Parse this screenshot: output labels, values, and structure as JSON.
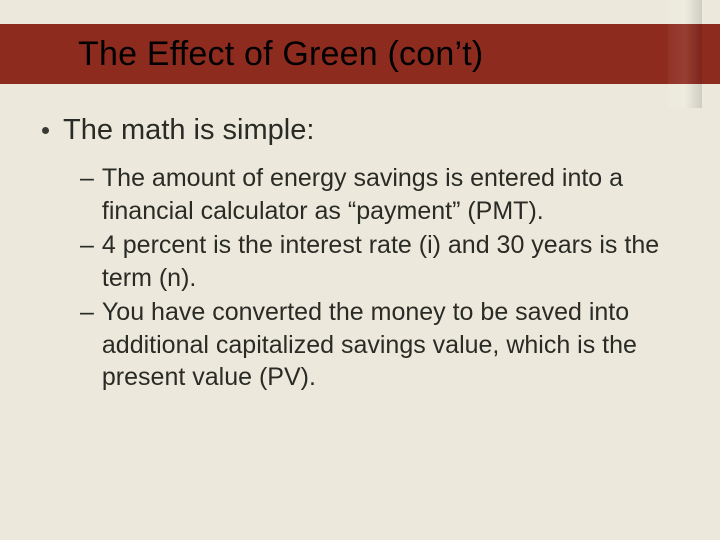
{
  "slide": {
    "background_color": "#ece9dc",
    "title_bar_color": "#8e2b1f",
    "text_color": "#2b2b26",
    "title": "The Effect of Green (con’t)",
    "title_fontsize": 34,
    "bullet_level1": {
      "text": "The math is simple:",
      "fontsize": 29,
      "marker": "disc",
      "marker_color": "#3a3a34"
    },
    "bullets_level2": [
      "The amount of energy savings is entered into a financial calculator as “payment” (PMT).",
      "4 percent is the interest rate (i) and 30 years is the term (n).",
      "You have converted the money to be saved into additional capitalized savings value, which is the present value (PV)."
    ],
    "level2_fontsize": 25,
    "level2_marker": "–"
  }
}
